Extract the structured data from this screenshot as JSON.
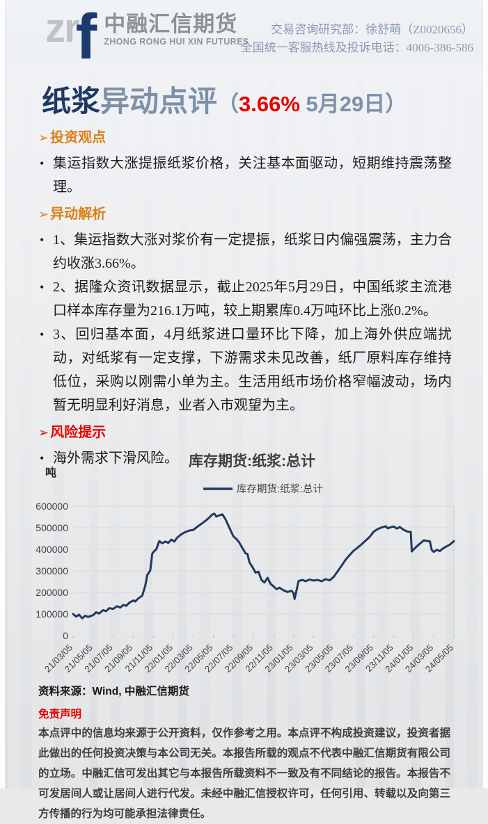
{
  "header": {
    "logo_zr": "zr",
    "logo_f": "f",
    "logo_cn": "中融汇信期货",
    "logo_en": "ZHONG RONG HUI XIN FUTURES",
    "contact_line1": "交易咨询研究部：徐舒萌（Z0020656）",
    "contact_line2": "全国统一客服热线及投诉电话：4006-386-586",
    "contact_color": "#8a99af"
  },
  "title": {
    "product": "纸浆",
    "rest": "异动点评",
    "paren_open": "（",
    "change": "3.66%",
    "date": " 5月29日",
    "paren_close": "）",
    "product_color": "#1f3864",
    "change_color": "#e60400"
  },
  "sections": [
    {
      "heading": "投资观点",
      "arrow": "➢",
      "color": "#d9821a",
      "bullets": [
        "集运指数大涨提振纸浆价格，关注基本面驱动，短期维持震荡整理。"
      ]
    },
    {
      "heading": "异动解析",
      "arrow": "➢",
      "color": "#d9821a",
      "bullets": [
        "1、集运指数大涨对浆价有一定提振，纸浆日内偏强震荡，主力合约收涨3.66%。",
        "2、据隆众资讯数据显示，截止2025年5月29日，中国纸浆主流港口样本库存量为216.1万吨，较上期累库0.4万吨环比上涨0.2%。",
        "3、回归基本面，4月纸浆进口量环比下降，加上海外供应端扰动，对纸浆有一定支撑，下游需求未见改善，纸厂原料库存维持低位，采购以刚需小单为主。生活用纸市场价格窄幅波动，场内暂无明显利好消息，业者入市观望为主。"
      ]
    },
    {
      "heading": "风险提示",
      "arrow": "➢",
      "color": "#e60400",
      "bullets": [
        "海外需求下滑风险。"
      ]
    }
  ],
  "chart_data": {
    "type": "line",
    "title": "库存期货:纸浆:总计",
    "unit_label": "吨",
    "legend": [
      "库存期货:纸浆:总计"
    ],
    "line_color": "#1f3a5c",
    "grid_color": "#d9dadb",
    "ylim": [
      0,
      600000
    ],
    "yticks": [
      0,
      100000,
      200000,
      300000,
      400000,
      500000,
      600000
    ],
    "x_tick_labels": [
      "21/03/05",
      "21/05/05",
      "21/07/05",
      "21/09/05",
      "21/11/05",
      "22/01/05",
      "22/03/05",
      "22/05/05",
      "22/07/05",
      "22/09/05",
      "22/11/05",
      "23/01/05",
      "23/03/05",
      "23/05/05",
      "23/07/05",
      "23/09/05",
      "23/11/05",
      "24/01/05",
      "24/03/05",
      "24/05/05"
    ],
    "series": [
      {
        "name": "库存期货:纸浆:总计",
        "points": [
          [
            0,
            100000
          ],
          [
            0.15,
            88000
          ],
          [
            0.3,
            97000
          ],
          [
            0.45,
            80000
          ],
          [
            0.6,
            92000
          ],
          [
            0.75,
            86000
          ],
          [
            1,
            95000
          ],
          [
            1.15,
            108000
          ],
          [
            1.3,
            102000
          ],
          [
            1.5,
            118000
          ],
          [
            1.65,
            113000
          ],
          [
            1.8,
            127000
          ],
          [
            2,
            124000
          ],
          [
            2.2,
            136000
          ],
          [
            2.35,
            130000
          ],
          [
            2.5,
            142000
          ],
          [
            2.65,
            138000
          ],
          [
            2.8,
            152000
          ],
          [
            3,
            163000
          ],
          [
            3.1,
            158000
          ],
          [
            3.25,
            172000
          ],
          [
            3.45,
            185000
          ],
          [
            3.6,
            230000
          ],
          [
            3.7,
            280000
          ],
          [
            3.8,
            295000
          ],
          [
            3.85,
            302000
          ],
          [
            3.95,
            380000
          ],
          [
            4.05,
            392000
          ],
          [
            4.15,
            400000
          ],
          [
            4.3,
            438000
          ],
          [
            4.45,
            428000
          ],
          [
            4.6,
            436000
          ],
          [
            4.75,
            430000
          ],
          [
            4.9,
            445000
          ],
          [
            5.05,
            436000
          ],
          [
            5.2,
            455000
          ],
          [
            5.4,
            470000
          ],
          [
            5.6,
            480000
          ],
          [
            5.8,
            487000
          ],
          [
            6,
            490000
          ],
          [
            6.2,
            505000
          ],
          [
            6.4,
            518000
          ],
          [
            6.6,
            532000
          ],
          [
            6.8,
            548000
          ],
          [
            6.95,
            562000
          ],
          [
            7.05,
            565000
          ],
          [
            7.15,
            552000
          ],
          [
            7.3,
            558000
          ],
          [
            7.45,
            562000
          ],
          [
            7.6,
            540000
          ],
          [
            7.75,
            510000
          ],
          [
            7.9,
            480000
          ],
          [
            8,
            460000
          ],
          [
            8.15,
            448000
          ],
          [
            8.3,
            430000
          ],
          [
            8.45,
            405000
          ],
          [
            8.6,
            382000
          ],
          [
            8.7,
            378000
          ],
          [
            8.8,
            340000
          ],
          [
            9,
            310000
          ],
          [
            9.1,
            292000
          ],
          [
            9.25,
            296000
          ],
          [
            9.4,
            258000
          ],
          [
            9.55,
            246000
          ],
          [
            9.7,
            268000
          ],
          [
            9.85,
            240000
          ],
          [
            10,
            228000
          ],
          [
            10.15,
            215000
          ],
          [
            10.3,
            222000
          ],
          [
            10.5,
            210000
          ],
          [
            10.7,
            202000
          ],
          [
            10.9,
            208000
          ],
          [
            11,
            196000
          ],
          [
            11.05,
            170000
          ],
          [
            11.15,
            210000
          ],
          [
            11.25,
            253000
          ],
          [
            11.45,
            258000
          ],
          [
            11.6,
            252000
          ],
          [
            11.8,
            260000
          ],
          [
            12,
            255000
          ],
          [
            12.2,
            258000
          ],
          [
            12.4,
            252000
          ],
          [
            12.6,
            262000
          ],
          [
            12.8,
            256000
          ],
          [
            13,
            272000
          ],
          [
            13.2,
            298000
          ],
          [
            13.4,
            325000
          ],
          [
            13.6,
            352000
          ],
          [
            13.8,
            374000
          ],
          [
            14,
            394000
          ],
          [
            14.2,
            408000
          ],
          [
            14.4,
            424000
          ],
          [
            14.6,
            441000
          ],
          [
            14.8,
            458000
          ],
          [
            15,
            482000
          ],
          [
            15.2,
            494000
          ],
          [
            15.4,
            502000
          ],
          [
            15.6,
            507000
          ],
          [
            15.7,
            497000
          ],
          [
            15.85,
            503000
          ],
          [
            16,
            506000
          ],
          [
            16.15,
            496000
          ],
          [
            16.3,
            504000
          ],
          [
            16.5,
            490000
          ],
          [
            16.7,
            482000
          ],
          [
            16.85,
            481000
          ],
          [
            16.9,
            390000
          ],
          [
            17.05,
            405000
          ],
          [
            17.2,
            418000
          ],
          [
            17.35,
            430000
          ],
          [
            17.5,
            442000
          ],
          [
            17.65,
            439000
          ],
          [
            17.8,
            437000
          ],
          [
            17.9,
            396000
          ],
          [
            18,
            388000
          ],
          [
            18.15,
            398000
          ],
          [
            18.3,
            392000
          ],
          [
            18.45,
            404000
          ],
          [
            18.6,
            412000
          ],
          [
            18.8,
            422000
          ],
          [
            19,
            438000
          ]
        ]
      }
    ]
  },
  "footer": {
    "source": "资料来源：Wind, 中融汇信期货",
    "disclaimer_title": "免责声明",
    "disclaimer_text": "本点评中的信息均来源于公开资料，仅作参考之用。本点评不构成投资建议，投资者据此做出的任何投资决策与本公司无关。本报告所载的观点不代表中融汇信期货有限公司的立场。中融汇信可发出其它与本报告所载资料不一致及有不同结论的报告。本报告不可发居间人或让居间人进行代发。未经中融汇信授权许可，任何引用、转载以及向第三方传播的行为均可能承担法律责任。"
  }
}
